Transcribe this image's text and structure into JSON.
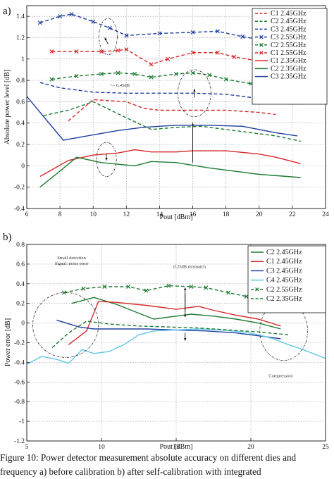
{
  "chart_data": [
    {
      "type": "line",
      "panel_label": "a)",
      "xlabel": "Pout [dBm]",
      "ylabel": "Absolute power level [dB]",
      "xlim": [
        6,
        24
      ],
      "ylim": [
        -0.4,
        1.5
      ],
      "xticks": [
        "6",
        "8",
        "10",
        "12",
        "14",
        "16",
        "18",
        "20",
        "22",
        "24"
      ],
      "yticks": [
        "-0.4",
        "-0.2",
        "0",
        "0.2",
        "0.4",
        "0.6",
        "0.8",
        "1",
        "1.2",
        "1.4"
      ],
      "grid": true,
      "legend": "top-right",
      "series": [
        {
          "name": "C1 2.45GHz",
          "color": "#d62728",
          "style": "dash",
          "marker": "none",
          "x": [
            8.5,
            10,
            12,
            13,
            14,
            16,
            18,
            20,
            21
          ],
          "y": [
            0.42,
            0.62,
            0.6,
            0.54,
            0.52,
            0.52,
            0.52,
            0.5,
            0.48
          ]
        },
        {
          "name": "C2 2.45GHz",
          "color": "#1e7b34",
          "style": "dash",
          "marker": "none",
          "x": [
            7,
            8.5,
            10,
            12,
            13.5,
            15,
            16.5,
            18,
            20,
            21,
            22.5
          ],
          "y": [
            0.47,
            0.52,
            0.6,
            0.45,
            0.34,
            0.36,
            0.37,
            0.34,
            0.3,
            0.28,
            0.23
          ]
        },
        {
          "name": "C3 2.45GHz",
          "color": "#1f3e9e",
          "style": "dash",
          "marker": "none",
          "x": [
            6.8,
            8,
            10,
            12,
            14,
            16,
            18,
            20,
            22.5
          ],
          "y": [
            0.78,
            0.73,
            0.69,
            0.68,
            0.68,
            0.68,
            0.67,
            0.63,
            0.58
          ]
        },
        {
          "name": "C3 2.55GHz",
          "color": "#1f3e9e",
          "style": "dash",
          "marker": "x",
          "x": [
            6.8,
            8,
            8.7,
            10,
            11,
            12,
            14,
            16,
            17.5,
            19,
            20.5
          ],
          "y": [
            1.34,
            1.4,
            1.42,
            1.35,
            1.29,
            1.22,
            1.24,
            1.25,
            1.26,
            1.21,
            1.17
          ]
        },
        {
          "name": "C2 2.55GHz",
          "color": "#1e7b34",
          "style": "dash",
          "marker": "x",
          "x": [
            7.5,
            9,
            10.5,
            11.5,
            12.5,
            13.5,
            15,
            16,
            17,
            18,
            19.5,
            21
          ],
          "y": [
            0.81,
            0.84,
            0.86,
            0.87,
            0.86,
            0.83,
            0.86,
            0.87,
            0.85,
            0.81,
            0.77,
            0.72
          ]
        },
        {
          "name": "C1 2.55GHz",
          "color": "#d62728",
          "style": "dash",
          "marker": "x",
          "x": [
            7.5,
            9,
            10.5,
            11.5,
            12,
            13.5,
            14.5,
            16,
            17.5,
            18.5,
            20,
            21
          ],
          "y": [
            1.07,
            1.07,
            1.07,
            1.08,
            1.09,
            0.95,
            1.0,
            1.06,
            1.06,
            1.02,
            0.98,
            0.93
          ]
        },
        {
          "name": "C1 2.35GHz",
          "color": "#d62728",
          "style": "solid",
          "marker": "none",
          "x": [
            6.8,
            8.5,
            10,
            11.5,
            12.5,
            13.5,
            15,
            16,
            17,
            18,
            20,
            21,
            22.5
          ],
          "y": [
            -0.1,
            0.05,
            0.1,
            0.12,
            0.15,
            0.13,
            0.13,
            0.14,
            0.14,
            0.14,
            0.11,
            0.08,
            0.02
          ]
        },
        {
          "name": "C2 2.35GHz",
          "color": "#1e7b34",
          "style": "solid",
          "marker": "none",
          "x": [
            6.8,
            8,
            9,
            10.5,
            12.5,
            13.5,
            15,
            17,
            18.5,
            20,
            22.5
          ],
          "y": [
            -0.2,
            -0.05,
            0.08,
            0.03,
            0.0,
            0.04,
            0.03,
            -0.02,
            -0.05,
            -0.08,
            -0.11
          ]
        },
        {
          "name": "C3 2.35GHz",
          "color": "#1f3e9e",
          "style": "solid",
          "marker": "none",
          "x": [
            6,
            8.2,
            10,
            11.5,
            13,
            15,
            17,
            19,
            21,
            22.3
          ],
          "y": [
            0.65,
            0.24,
            0.29,
            0.33,
            0.36,
            0.38,
            0.38,
            0.37,
            0.31,
            0.28
          ]
        }
      ],
      "annotations": [
        {
          "text": "+/- 0.45dB",
          "x": 11.6,
          "y": 0.74
        }
      ]
    },
    {
      "type": "line",
      "panel_label": "b)",
      "xlabel": "Pout [dBm]",
      "ylabel": "Power error [dB]",
      "xlim": [
        5,
        25
      ],
      "ylim": [
        -1.2,
        0.8
      ],
      "xticks": [
        "5",
        "10",
        "15",
        "20",
        "25"
      ],
      "yticks": [
        "-1.2",
        "-1",
        "-0.8",
        "-0.6",
        "-0.4",
        "-0.2",
        "0",
        "0.2",
        "0.4",
        "0.6",
        "0.8"
      ],
      "grid": true,
      "legend": "top-right",
      "series": [
        {
          "name": "C2 2.45GHz",
          "color": "#1e7b34",
          "style": "solid",
          "marker": "none",
          "x": [
            8,
            9.5,
            11,
            12.5,
            13.5,
            15,
            16,
            17.5,
            19,
            20.5,
            22
          ],
          "y": [
            0.2,
            0.26,
            0.19,
            0.1,
            0.04,
            0.07,
            0.09,
            0.07,
            0.04,
            0.0,
            -0.06
          ]
        },
        {
          "name": "C1 2.45GHz",
          "color": "#d62728",
          "style": "solid",
          "marker": "none",
          "x": [
            7.8,
            9,
            9.8,
            11,
            13,
            15,
            16.5,
            17.5,
            19,
            20.5,
            22
          ],
          "y": [
            -0.22,
            -0.08,
            0.22,
            0.21,
            0.18,
            0.14,
            0.17,
            0.13,
            0.08,
            0.04,
            -0.03
          ]
        },
        {
          "name": "C3 2.45GHz",
          "color": "#1f3e9e",
          "style": "solid",
          "marker": "none",
          "x": [
            7,
            8.5,
            9.5,
            11,
            13,
            15,
            17,
            19,
            21,
            22
          ],
          "y": [
            0.03,
            -0.04,
            -0.06,
            -0.06,
            -0.06,
            -0.07,
            -0.08,
            -0.1,
            -0.14,
            -0.16
          ]
        },
        {
          "name": "C4 2.45GHz",
          "color": "#5ec7e8",
          "style": "solid",
          "marker": "none",
          "x": [
            5,
            6,
            7,
            7.8,
            8.7,
            9.5,
            10.5,
            11.5,
            12.5,
            13.5,
            15,
            16.5,
            18,
            19.5,
            20.5,
            21.5,
            22.5,
            23.5,
            24.5,
            25
          ],
          "y": [
            -0.42,
            -0.34,
            -0.37,
            -0.41,
            -0.27,
            -0.31,
            -0.29,
            -0.22,
            -0.12,
            -0.08,
            -0.07,
            -0.06,
            -0.07,
            -0.09,
            -0.12,
            -0.16,
            -0.22,
            -0.27,
            -0.33,
            -0.36
          ]
        },
        {
          "name": "C2 2.55GHz",
          "color": "#1e7b34",
          "style": "dash",
          "marker": "x",
          "x": [
            7.5,
            8.8,
            10.2,
            11.8,
            13,
            14.5,
            16,
            17,
            18.5,
            19.7,
            21,
            22.5
          ],
          "y": [
            0.31,
            0.35,
            0.37,
            0.37,
            0.33,
            0.38,
            0.37,
            0.36,
            0.31,
            0.27,
            0.24,
            0.19
          ]
        },
        {
          "name": "C2 2.35GHz",
          "color": "#1e7b34",
          "style": "dash",
          "marker": "none",
          "x": [
            6.7,
            7.8,
            9,
            10.5,
            12.5,
            14.5,
            16.5,
            18.5,
            20.5,
            22.5
          ],
          "y": [
            -0.25,
            -0.1,
            0.02,
            -0.01,
            -0.03,
            -0.04,
            -0.05,
            -0.07,
            -0.09,
            -0.12
          ]
        }
      ],
      "annotations": [
        {
          "text": "Small detection\nSignal: noise error",
          "x": 8.0,
          "y": 0.65
        },
        {
          "text": "0.25dB mismatch",
          "x": 15.9,
          "y": 0.56
        },
        {
          "text": "Compression",
          "x": 22.0,
          "y": -0.55
        }
      ]
    }
  ],
  "caption_lines": [
    "Figure 10: Power detector measurement absolute accuracy on different dies and",
    "frequency a) before calibration b) after self-calibration with integrated"
  ]
}
